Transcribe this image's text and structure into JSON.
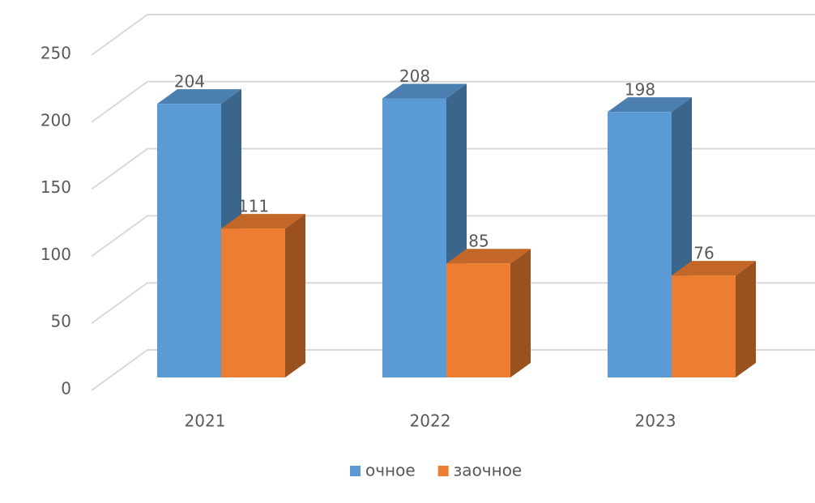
{
  "chart_data": {
    "type": "bar3d",
    "categories": [
      "2021",
      "2022",
      "2023"
    ],
    "series": [
      {
        "name": "очное",
        "color": "#5b9bd5",
        "values": [
          204,
          208,
          198
        ]
      },
      {
        "name": "заочное",
        "color": "#ed7d31",
        "values": [
          111,
          85,
          76
        ]
      }
    ],
    "ylim": [
      0,
      250
    ],
    "yticks": [
      0,
      50,
      100,
      150,
      200,
      250
    ],
    "grid": true,
    "legend": "bottom"
  }
}
